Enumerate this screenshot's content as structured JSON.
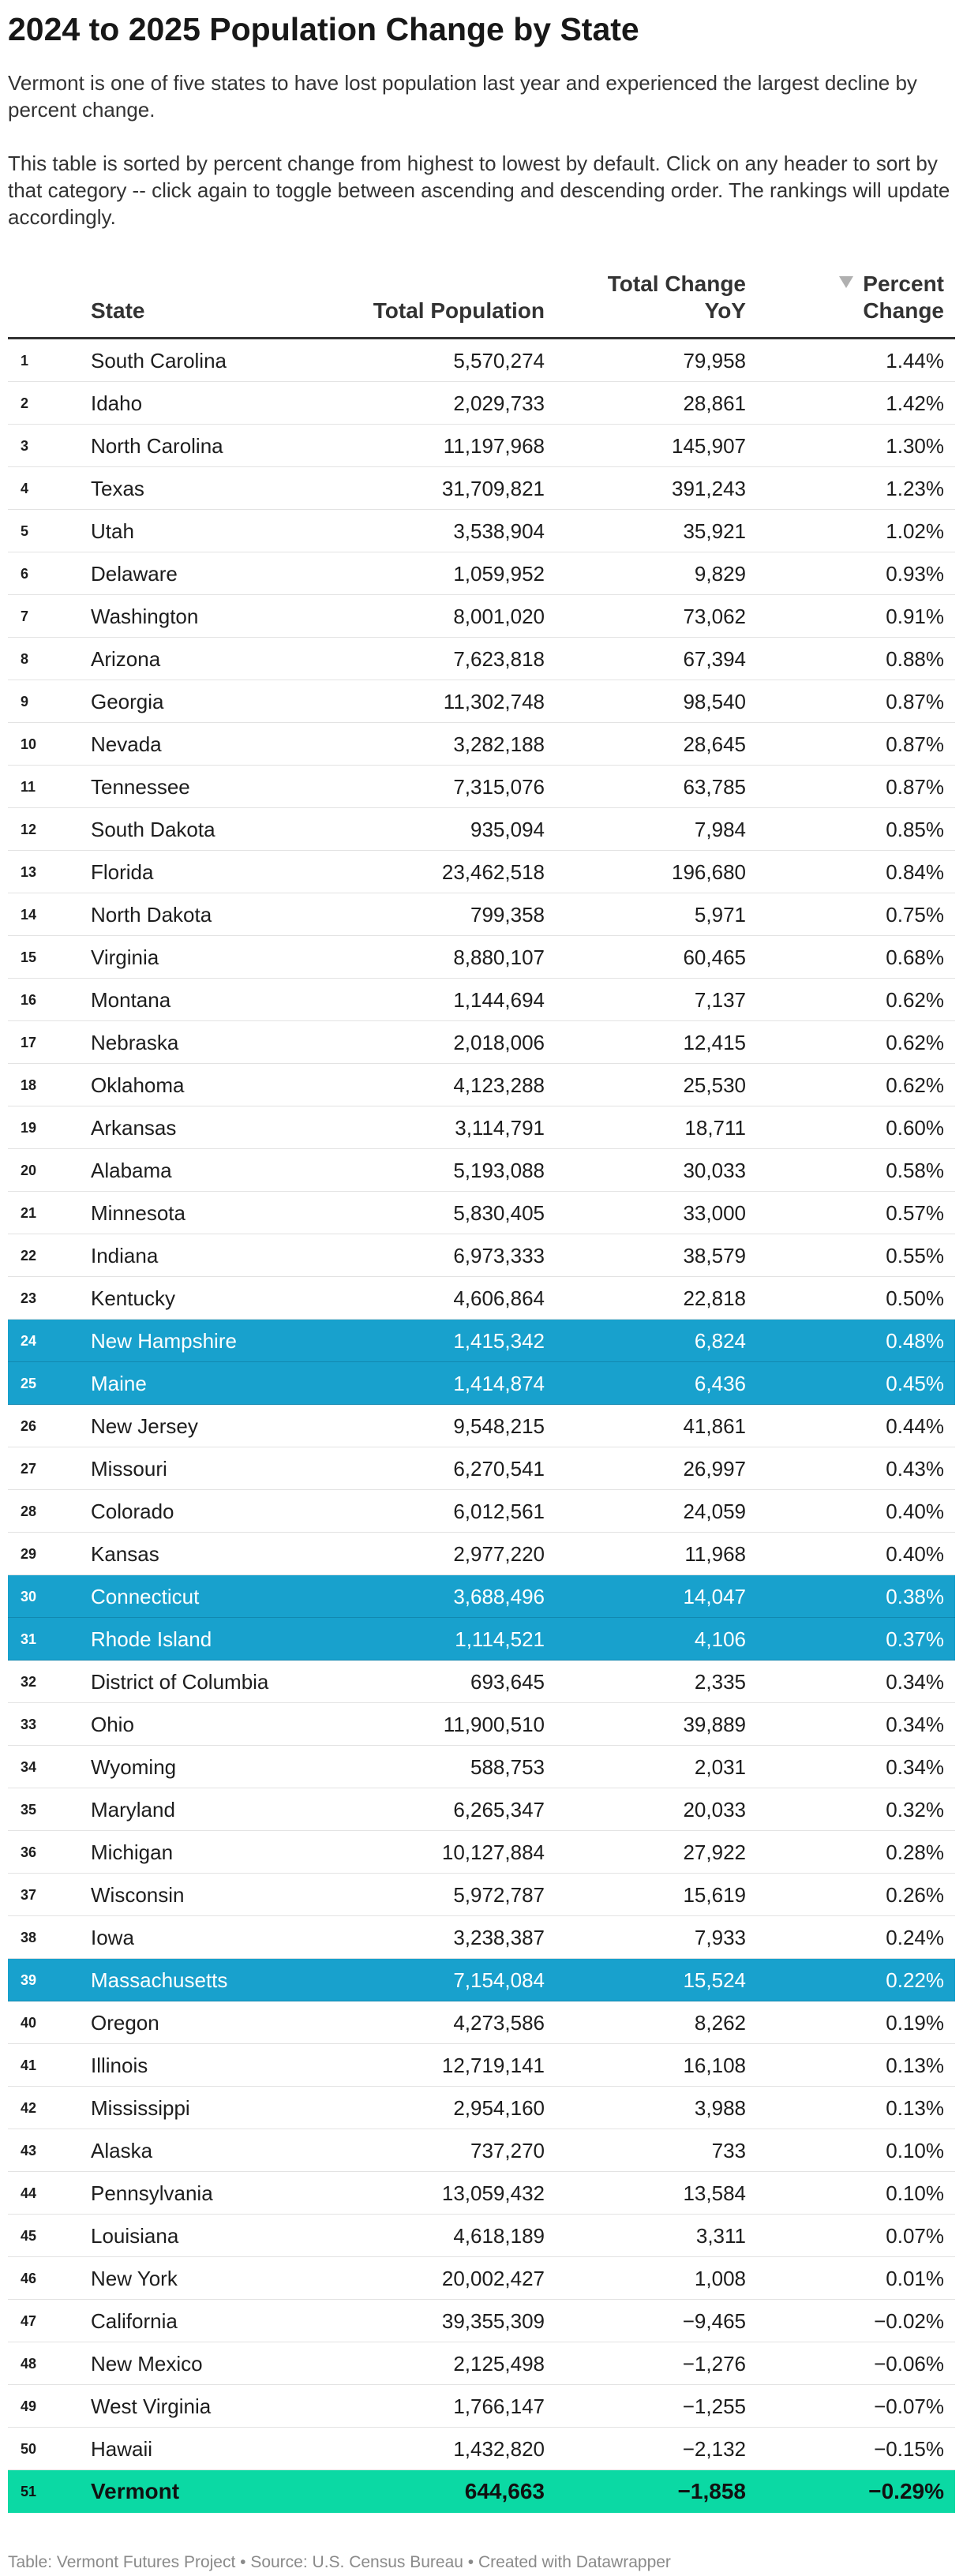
{
  "header": {
    "title": "2024 to 2025 Population Change by State",
    "intro_1": "Vermont is one of five states to have lost population last year and experienced the largest decline by percent change.",
    "intro_2": "This table is sorted by percent change from highest to lowest by default. Click on any header to sort by that category -- click again to toggle between ascending and descending order. The rankings will update accordingly."
  },
  "chart_data": {
    "type": "table",
    "title": "2024 to 2025 Population Change by State",
    "columns": [
      "State",
      "Total Population",
      "Total Change YoY",
      "Percent Change"
    ],
    "column_labels": {
      "state": "State",
      "total": "Total Population",
      "change_1": "Total Change",
      "change_2": "YoY",
      "pct_1": "Percent",
      "pct_2": "Change"
    },
    "sorted_by": "Percent Change",
    "sort_order": "descending",
    "highlight_colors": {
      "new_england": "#18a1cd",
      "vermont": "#0bd9a4"
    },
    "rows": [
      {
        "rank": "1",
        "state": "South Carolina",
        "total": "5,570,274",
        "change": "79,958",
        "pct": "1.44%",
        "highlight": ""
      },
      {
        "rank": "2",
        "state": "Idaho",
        "total": "2,029,733",
        "change": "28,861",
        "pct": "1.42%",
        "highlight": ""
      },
      {
        "rank": "3",
        "state": "North Carolina",
        "total": "11,197,968",
        "change": "145,907",
        "pct": "1.30%",
        "highlight": ""
      },
      {
        "rank": "4",
        "state": "Texas",
        "total": "31,709,821",
        "change": "391,243",
        "pct": "1.23%",
        "highlight": ""
      },
      {
        "rank": "5",
        "state": "Utah",
        "total": "3,538,904",
        "change": "35,921",
        "pct": "1.02%",
        "highlight": ""
      },
      {
        "rank": "6",
        "state": "Delaware",
        "total": "1,059,952",
        "change": "9,829",
        "pct": "0.93%",
        "highlight": ""
      },
      {
        "rank": "7",
        "state": "Washington",
        "total": "8,001,020",
        "change": "73,062",
        "pct": "0.91%",
        "highlight": ""
      },
      {
        "rank": "8",
        "state": "Arizona",
        "total": "7,623,818",
        "change": "67,394",
        "pct": "0.88%",
        "highlight": ""
      },
      {
        "rank": "9",
        "state": "Georgia",
        "total": "11,302,748",
        "change": "98,540",
        "pct": "0.87%",
        "highlight": ""
      },
      {
        "rank": "10",
        "state": "Nevada",
        "total": "3,282,188",
        "change": "28,645",
        "pct": "0.87%",
        "highlight": ""
      },
      {
        "rank": "11",
        "state": "Tennessee",
        "total": "7,315,076",
        "change": "63,785",
        "pct": "0.87%",
        "highlight": ""
      },
      {
        "rank": "12",
        "state": "South Dakota",
        "total": "935,094",
        "change": "7,984",
        "pct": "0.85%",
        "highlight": ""
      },
      {
        "rank": "13",
        "state": "Florida",
        "total": "23,462,518",
        "change": "196,680",
        "pct": "0.84%",
        "highlight": ""
      },
      {
        "rank": "14",
        "state": "North Dakota",
        "total": "799,358",
        "change": "5,971",
        "pct": "0.75%",
        "highlight": ""
      },
      {
        "rank": "15",
        "state": "Virginia",
        "total": "8,880,107",
        "change": "60,465",
        "pct": "0.68%",
        "highlight": ""
      },
      {
        "rank": "16",
        "state": "Montana",
        "total": "1,144,694",
        "change": "7,137",
        "pct": "0.62%",
        "highlight": ""
      },
      {
        "rank": "17",
        "state": "Nebraska",
        "total": "2,018,006",
        "change": "12,415",
        "pct": "0.62%",
        "highlight": ""
      },
      {
        "rank": "18",
        "state": "Oklahoma",
        "total": "4,123,288",
        "change": "25,530",
        "pct": "0.62%",
        "highlight": ""
      },
      {
        "rank": "19",
        "state": "Arkansas",
        "total": "3,114,791",
        "change": "18,711",
        "pct": "0.60%",
        "highlight": ""
      },
      {
        "rank": "20",
        "state": "Alabama",
        "total": "5,193,088",
        "change": "30,033",
        "pct": "0.58%",
        "highlight": ""
      },
      {
        "rank": "21",
        "state": "Minnesota",
        "total": "5,830,405",
        "change": "33,000",
        "pct": "0.57%",
        "highlight": ""
      },
      {
        "rank": "22",
        "state": "Indiana",
        "total": "6,973,333",
        "change": "38,579",
        "pct": "0.55%",
        "highlight": ""
      },
      {
        "rank": "23",
        "state": "Kentucky",
        "total": "4,606,864",
        "change": "22,818",
        "pct": "0.50%",
        "highlight": ""
      },
      {
        "rank": "24",
        "state": "New Hampshire",
        "total": "1,415,342",
        "change": "6,824",
        "pct": "0.48%",
        "highlight": "new_england"
      },
      {
        "rank": "25",
        "state": "Maine",
        "total": "1,414,874",
        "change": "6,436",
        "pct": "0.45%",
        "highlight": "new_england"
      },
      {
        "rank": "26",
        "state": "New Jersey",
        "total": "9,548,215",
        "change": "41,861",
        "pct": "0.44%",
        "highlight": ""
      },
      {
        "rank": "27",
        "state": "Missouri",
        "total": "6,270,541",
        "change": "26,997",
        "pct": "0.43%",
        "highlight": ""
      },
      {
        "rank": "28",
        "state": "Colorado",
        "total": "6,012,561",
        "change": "24,059",
        "pct": "0.40%",
        "highlight": ""
      },
      {
        "rank": "29",
        "state": "Kansas",
        "total": "2,977,220",
        "change": "11,968",
        "pct": "0.40%",
        "highlight": ""
      },
      {
        "rank": "30",
        "state": "Connecticut",
        "total": "3,688,496",
        "change": "14,047",
        "pct": "0.38%",
        "highlight": "new_england"
      },
      {
        "rank": "31",
        "state": "Rhode Island",
        "total": "1,114,521",
        "change": "4,106",
        "pct": "0.37%",
        "highlight": "new_england"
      },
      {
        "rank": "32",
        "state": "District of Columbia",
        "total": "693,645",
        "change": "2,335",
        "pct": "0.34%",
        "highlight": ""
      },
      {
        "rank": "33",
        "state": "Ohio",
        "total": "11,900,510",
        "change": "39,889",
        "pct": "0.34%",
        "highlight": ""
      },
      {
        "rank": "34",
        "state": "Wyoming",
        "total": "588,753",
        "change": "2,031",
        "pct": "0.34%",
        "highlight": ""
      },
      {
        "rank": "35",
        "state": "Maryland",
        "total": "6,265,347",
        "change": "20,033",
        "pct": "0.32%",
        "highlight": ""
      },
      {
        "rank": "36",
        "state": "Michigan",
        "total": "10,127,884",
        "change": "27,922",
        "pct": "0.28%",
        "highlight": ""
      },
      {
        "rank": "37",
        "state": "Wisconsin",
        "total": "5,972,787",
        "change": "15,619",
        "pct": "0.26%",
        "highlight": ""
      },
      {
        "rank": "38",
        "state": "Iowa",
        "total": "3,238,387",
        "change": "7,933",
        "pct": "0.24%",
        "highlight": ""
      },
      {
        "rank": "39",
        "state": "Massachusetts",
        "total": "7,154,084",
        "change": "15,524",
        "pct": "0.22%",
        "highlight": "new_england"
      },
      {
        "rank": "40",
        "state": "Oregon",
        "total": "4,273,586",
        "change": "8,262",
        "pct": "0.19%",
        "highlight": ""
      },
      {
        "rank": "41",
        "state": "Illinois",
        "total": "12,719,141",
        "change": "16,108",
        "pct": "0.13%",
        "highlight": ""
      },
      {
        "rank": "42",
        "state": "Mississippi",
        "total": "2,954,160",
        "change": "3,988",
        "pct": "0.13%",
        "highlight": ""
      },
      {
        "rank": "43",
        "state": "Alaska",
        "total": "737,270",
        "change": "733",
        "pct": "0.10%",
        "highlight": ""
      },
      {
        "rank": "44",
        "state": "Pennsylvania",
        "total": "13,059,432",
        "change": "13,584",
        "pct": "0.10%",
        "highlight": ""
      },
      {
        "rank": "45",
        "state": "Louisiana",
        "total": "4,618,189",
        "change": "3,311",
        "pct": "0.07%",
        "highlight": ""
      },
      {
        "rank": "46",
        "state": "New York",
        "total": "20,002,427",
        "change": "1,008",
        "pct": "0.01%",
        "highlight": ""
      },
      {
        "rank": "47",
        "state": "California",
        "total": "39,355,309",
        "change": "−9,465",
        "pct": "−0.02%",
        "highlight": ""
      },
      {
        "rank": "48",
        "state": "New Mexico",
        "total": "2,125,498",
        "change": "−1,276",
        "pct": "−0.06%",
        "highlight": ""
      },
      {
        "rank": "49",
        "state": "West Virginia",
        "total": "1,766,147",
        "change": "−1,255",
        "pct": "−0.07%",
        "highlight": ""
      },
      {
        "rank": "50",
        "state": "Hawaii",
        "total": "1,432,820",
        "change": "−2,132",
        "pct": "−0.15%",
        "highlight": ""
      },
      {
        "rank": "51",
        "state": "Vermont",
        "total": "644,663",
        "change": "−1,858",
        "pct": "−0.29%",
        "highlight": "vermont"
      }
    ]
  },
  "footer": {
    "text": "Table: Vermont Futures Project • Source: U.S. Census Bureau • Created with Datawrapper"
  }
}
